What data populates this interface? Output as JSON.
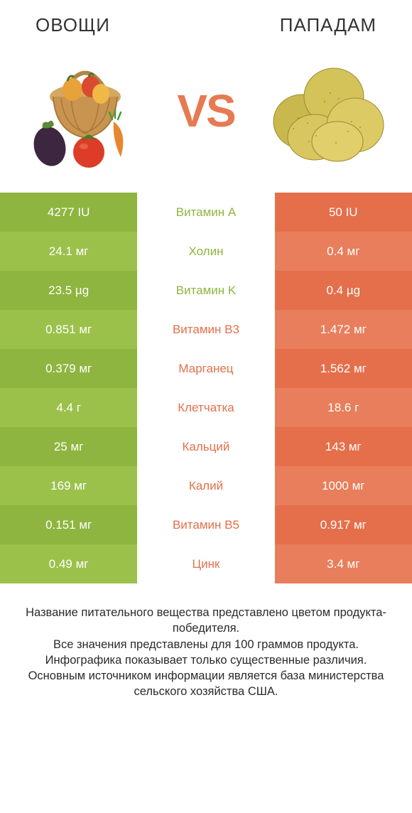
{
  "header": {
    "left_title": "Овощи",
    "right_title": "Пападам",
    "vs_label": "VS"
  },
  "colors": {
    "green_a": "#8eb53f",
    "green_b": "#9bc14b",
    "orange_a": "#e46f4a",
    "orange_b": "#e87e5b",
    "mid_green": "#8eb53f",
    "mid_orange": "#e46f4a",
    "vs_color": "#e67a52"
  },
  "rows": [
    {
      "left": "4277 IU",
      "mid": "Витамин A",
      "right": "50 IU",
      "winner": "left"
    },
    {
      "left": "24.1 мг",
      "mid": "Холин",
      "right": "0.4 мг",
      "winner": "left"
    },
    {
      "left": "23.5 µg",
      "mid": "Витамин K",
      "right": "0.4 µg",
      "winner": "left"
    },
    {
      "left": "0.851 мг",
      "mid": "Витамин B3",
      "right": "1.472 мг",
      "winner": "right"
    },
    {
      "left": "0.379 мг",
      "mid": "Марганец",
      "right": "1.562 мг",
      "winner": "right"
    },
    {
      "left": "4.4 г",
      "mid": "Клетчатка",
      "right": "18.6 г",
      "winner": "right"
    },
    {
      "left": "25 мг",
      "mid": "Кальций",
      "right": "143 мг",
      "winner": "right"
    },
    {
      "left": "169 мг",
      "mid": "Калий",
      "right": "1000 мг",
      "winner": "right"
    },
    {
      "left": "0.151 мг",
      "mid": "Витамин B5",
      "right": "0.917 мг",
      "winner": "right"
    },
    {
      "left": "0.49 мг",
      "mid": "Цинк",
      "right": "3.4 мг",
      "winner": "right"
    }
  ],
  "footer": {
    "line1": "Название питательного вещества представлено цветом продукта-победителя.",
    "line2": "Все значения представлены для 100 граммов продукта.",
    "line3": "Инфографика показывает только существенные различия.",
    "line4": "Основным источником информации является база министерства сельского хозяйства США."
  }
}
